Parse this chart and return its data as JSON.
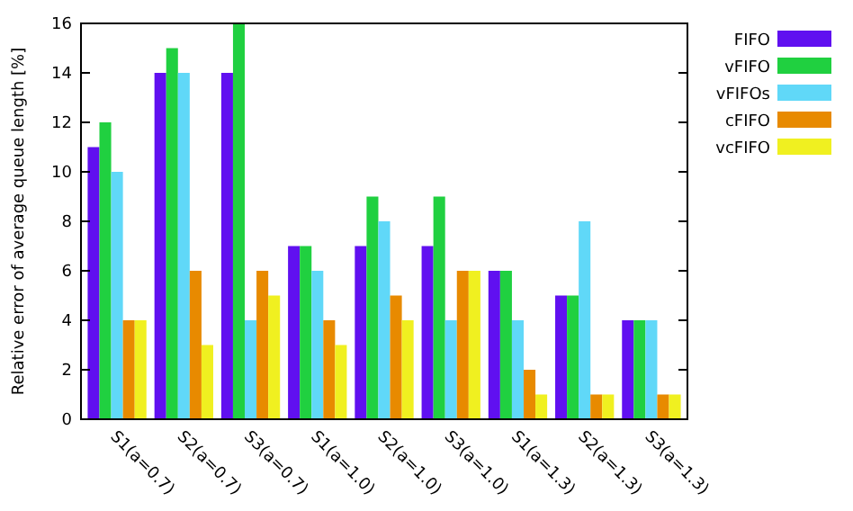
{
  "chart_data": {
    "type": "bar",
    "ylabel": "Relative error of average queue length [%]",
    "categories": [
      "S1(a=0.7)",
      "S2(a=0.7)",
      "S3(a=0.7)",
      "S1(a=1.0)",
      "S2(a=1.0)",
      "S3(a=1.0)",
      "S1(a=1.3)",
      "S2(a=1.3)",
      "S3(a=1.3)"
    ],
    "series": [
      {
        "name": "FIFO",
        "color": "#6010f0",
        "values": [
          11,
          14,
          14,
          7,
          7,
          7,
          6,
          5,
          4
        ]
      },
      {
        "name": "vFIFO",
        "color": "#20d040",
        "values": [
          12,
          15,
          16,
          7,
          9,
          9,
          6,
          5,
          4
        ]
      },
      {
        "name": "vFIFOs",
        "color": "#60d8f8",
        "values": [
          10,
          14,
          4,
          6,
          8,
          4,
          4,
          8,
          4
        ]
      },
      {
        "name": "cFIFO",
        "color": "#e88a00",
        "values": [
          4,
          6,
          6,
          4,
          5,
          6,
          2,
          1,
          1
        ]
      },
      {
        "name": "vcFIFO",
        "color": "#f0f020",
        "values": [
          4,
          3,
          5,
          3,
          4,
          6,
          1,
          1,
          1
        ]
      }
    ],
    "ylim": [
      0,
      16
    ],
    "yticks": [
      0,
      2,
      4,
      6,
      8,
      10,
      12,
      14,
      16
    ],
    "grid": false,
    "legend": "top right"
  }
}
